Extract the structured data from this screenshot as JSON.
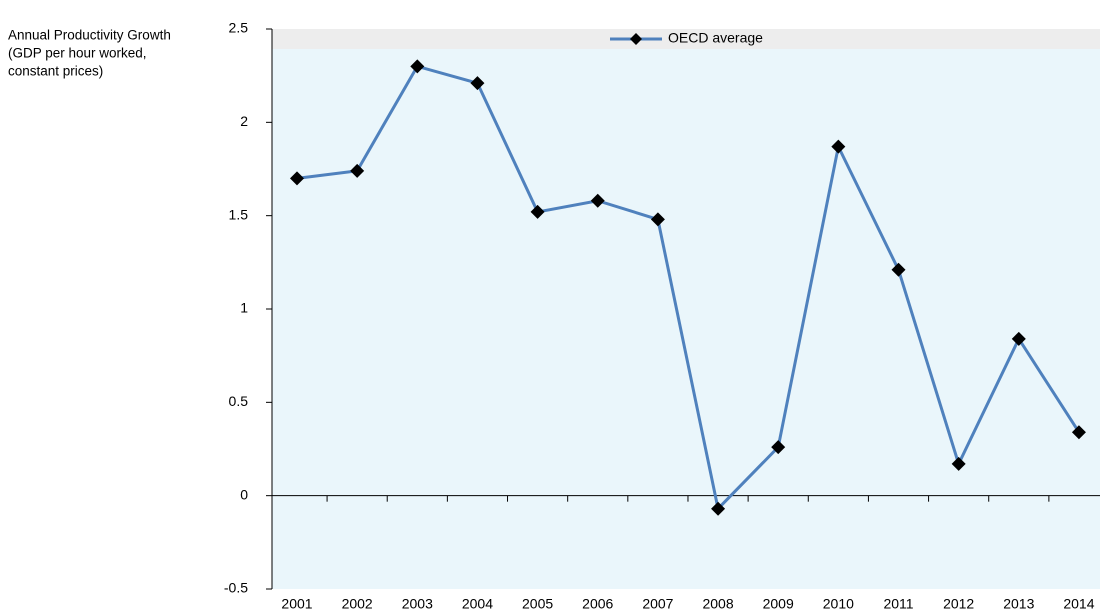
{
  "chart_data": {
    "type": "line",
    "y_label": [
      "Annual Productivity Growth",
      "(GDP per hour worked,",
      "constant prices)"
    ],
    "categories": [
      "2001",
      "2002",
      "2003",
      "2004",
      "2005",
      "2006",
      "2007",
      "2008",
      "2009",
      "2010",
      "2011",
      "2012",
      "2013",
      "2014"
    ],
    "series": [
      {
        "name": "OECD average",
        "color": "#4f81bd",
        "values": [
          1.7,
          1.74,
          2.3,
          2.21,
          1.52,
          1.58,
          1.48,
          -0.07,
          0.26,
          1.87,
          1.21,
          0.17,
          0.84,
          0.34
        ]
      }
    ],
    "ylim": [
      -0.5,
      2.5
    ],
    "yticks": [
      -0.5,
      0,
      0.5,
      1,
      1.5,
      2,
      2.5
    ],
    "legend": "top"
  }
}
